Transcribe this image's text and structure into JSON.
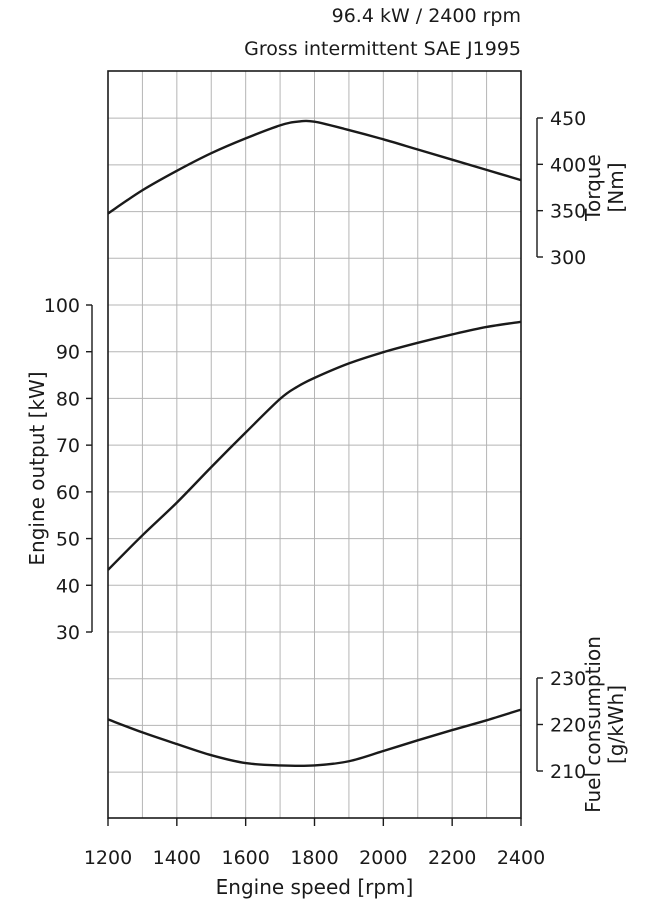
{
  "header": {
    "rating": "96.4 kW / 2400 rpm",
    "standard": "Gross intermittent SAE J1995"
  },
  "chart_data": {
    "type": "line",
    "grid": true,
    "colors": {
      "line": "#1a1a1a",
      "grid": "#b5b5b5",
      "frame": "#1a1a1a"
    },
    "x_axis": {
      "label": "Engine speed [rpm]",
      "range": [
        1200,
        2400
      ],
      "ticks": [
        1200,
        1400,
        1600,
        1800,
        2000,
        2200,
        2400
      ],
      "tick_labels": [
        "1200",
        "1400",
        "1600",
        "1800",
        "2000",
        "2200",
        "2400"
      ]
    },
    "axes": [
      {
        "id": "power",
        "label": "Engine output [kW]",
        "label_lines": [
          "Engine output [kW]"
        ],
        "side": "left",
        "range": [
          30,
          100
        ],
        "ticks": [
          30,
          40,
          50,
          60,
          70,
          80,
          90,
          100
        ],
        "tick_labels": [
          "30",
          "40",
          "50",
          "60",
          "70",
          "80",
          "90",
          "100"
        ]
      },
      {
        "id": "torque",
        "label": "Torque [Nm]",
        "label_lines": [
          "Torque",
          "[Nm]"
        ],
        "side": "right",
        "range": [
          300,
          450
        ],
        "ticks": [
          300,
          350,
          400,
          450
        ],
        "tick_labels": [
          "300",
          "350",
          "400",
          "450"
        ]
      },
      {
        "id": "fuel",
        "label": "Fuel consumption [g/kWh]",
        "label_lines": [
          "Fuel consumption",
          "[g/kWh]"
        ],
        "side": "right",
        "range": [
          210,
          230
        ],
        "ticks": [
          210,
          220,
          230
        ],
        "tick_labels": [
          "210",
          "220",
          "230"
        ]
      }
    ],
    "series": [
      {
        "axis": "torque",
        "x": [
          1200,
          1300,
          1400,
          1500,
          1600,
          1700,
          1750,
          1800,
          1900,
          2000,
          2100,
          2200,
          2300,
          2400
        ],
        "y": [
          347,
          372,
          393,
          412,
          428,
          442,
          446,
          446,
          437,
          427,
          416,
          405,
          394,
          383
        ]
      },
      {
        "axis": "power",
        "x": [
          1200,
          1300,
          1400,
          1500,
          1600,
          1700,
          1750,
          1800,
          1900,
          2000,
          2100,
          2200,
          2300,
          2400
        ],
        "y": [
          43.3,
          50.7,
          57.7,
          65.3,
          72.7,
          79.9,
          82.5,
          84.4,
          87.5,
          89.9,
          91.9,
          93.7,
          95.3,
          96.4
        ]
      },
      {
        "axis": "fuel",
        "x": [
          1200,
          1300,
          1400,
          1500,
          1600,
          1700,
          1800,
          1900,
          2000,
          2100,
          2200,
          2300,
          2400
        ],
        "y": [
          221.1,
          218.3,
          215.8,
          213.4,
          211.7,
          211.2,
          211.2,
          212.1,
          214.3,
          216.6,
          218.8,
          220.9,
          223.2
        ]
      }
    ]
  }
}
